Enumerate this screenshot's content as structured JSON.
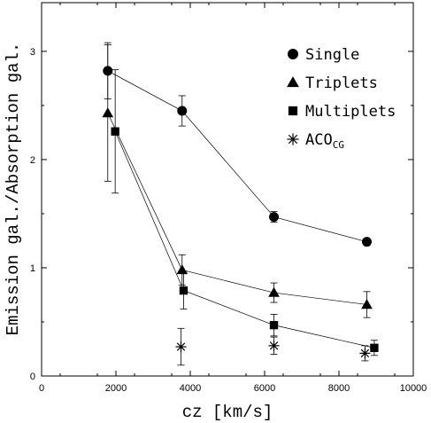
{
  "chart_data": {
    "type": "scatter",
    "xlabel": "cz [km/s]",
    "ylabel": "Emission gal./Absorption gal.",
    "xlim": [
      0,
      10000
    ],
    "ylim": [
      0,
      3.45
    ],
    "x_ticks": [
      0,
      2000,
      4000,
      6000,
      8000,
      10000
    ],
    "x_tick_labels": [
      "0",
      "2000",
      "4000",
      "6000",
      "8000",
      "10000"
    ],
    "y_ticks": [
      0,
      1,
      2,
      3
    ],
    "y_tick_labels": [
      "0",
      "1",
      "2",
      "3"
    ],
    "grid": false,
    "legend_position": "top-right",
    "series": [
      {
        "name": "Single",
        "marker": "circle",
        "connected": true,
        "x": [
          1780,
          3780,
          6250,
          8750
        ],
        "y": [
          2.82,
          2.45,
          1.47,
          1.24
        ],
        "err_low": [
          0.26,
          0.14,
          0.05,
          0.03
        ],
        "err_high": [
          0.26,
          0.14,
          0.05,
          0.03
        ]
      },
      {
        "name": "Triplets",
        "marker": "triangle",
        "connected": true,
        "x": [
          1780,
          3780,
          6250,
          8750
        ],
        "y": [
          2.43,
          0.98,
          0.77,
          0.66
        ],
        "err_low": [
          0.63,
          0.14,
          0.09,
          0.12
        ],
        "err_high": [
          0.63,
          0.14,
          0.09,
          0.12
        ]
      },
      {
        "name": "Multiplets",
        "marker": "square",
        "connected": true,
        "x": [
          1980,
          3820,
          6250,
          8950
        ],
        "y": [
          2.26,
          0.79,
          0.47,
          0.26
        ],
        "err_low": [
          0.57,
          0.17,
          0.1,
          0.07
        ],
        "err_high": [
          0.57,
          0.17,
          0.1,
          0.07
        ]
      },
      {
        "name": "ACO",
        "name_sub": "CG",
        "marker": "asterisk",
        "connected": false,
        "x": [
          3750,
          6250,
          8700
        ],
        "y": [
          0.27,
          0.28,
          0.21
        ],
        "err_low": [
          0.17,
          0.08,
          0.07
        ],
        "err_high": [
          0.17,
          0.08,
          0.07
        ]
      }
    ]
  }
}
